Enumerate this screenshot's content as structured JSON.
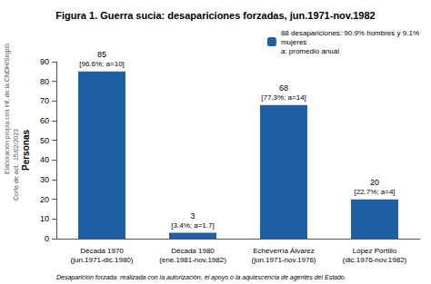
{
  "chart_data": {
    "type": "bar",
    "title": "Figura 1. Guerra sucia: desapariciones forzadas, jun.1971-nov.1982",
    "categories": [
      "Década 1970\n(jun.1971-dic.1980)",
      "Década 1980\n(ene.1981-nov.1982)",
      "Echeverría Álvarez\n(jun.1971-nov.1976)",
      "López Portillo\n(dic.1976-nov.1982)"
    ],
    "series": [
      {
        "name": "88 desapariciones: 90.9% hombres y 9.1%\nmujeres\na: promedio anual",
        "color": "#1F5FA6",
        "values": [
          85,
          3,
          68,
          20
        ]
      }
    ],
    "data_labels": true,
    "bar_annotations": [
      "[96.6%; a=10]",
      "[3.4%; a=1.7]",
      "[77.3%; a=14]",
      "[22.7%; a=4]"
    ],
    "ylabel": "Personas",
    "ylim": [
      0,
      90
    ],
    "yticks": [
      0,
      10,
      20,
      30,
      40,
      50,
      60,
      70,
      80,
      90
    ],
    "grid": false,
    "legend": "upper right",
    "footnote": "Desaparición forzada: realizada con la autorización, el apoyo o la aquiescencia de agentes del Estado.",
    "side_notes": [
      "Elaboración propia con inf. de la CNDH/Segob.",
      "Corte de act.: 15/02/2023"
    ]
  }
}
